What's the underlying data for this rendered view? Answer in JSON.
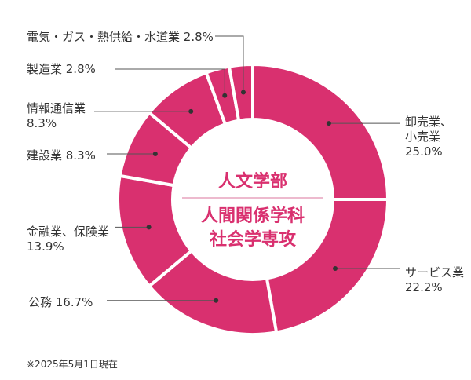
{
  "chart_data": {
    "type": "pie",
    "center_title": "人文学部",
    "center_subtitle_lines": [
      "人間関係学科",
      "社会学専攻"
    ],
    "slices": [
      {
        "label_lines": [
          "卸売業、",
          "小売業"
        ],
        "value_text": "25.0%",
        "value": 25.0
      },
      {
        "label_lines": [
          "サービス業"
        ],
        "value_text": "22.2%",
        "value": 22.2
      },
      {
        "label_lines": [
          "公務"
        ],
        "value_text": "16.7%",
        "value": 16.7
      },
      {
        "label_lines": [
          "金融業、保険業"
        ],
        "value_text": "13.9%",
        "value": 13.9
      },
      {
        "label_lines": [
          "建設業"
        ],
        "value_text": "8.3%",
        "value": 8.3
      },
      {
        "label_lines": [
          "情報通信業"
        ],
        "value_text": "8.3%",
        "value": 8.3
      },
      {
        "label_lines": [
          "製造業"
        ],
        "value_text": "2.8%",
        "value": 2.8
      },
      {
        "label_lines": [
          "電気・ガス・熱供給・水道業"
        ],
        "value_text": "2.8%",
        "value": 2.8
      }
    ],
    "note": "※2025年5月1日現在",
    "colors": {
      "slice": "#d9306f",
      "separator": "#ffffff",
      "center_text": "#d9306f",
      "divider": "#e7a3bd",
      "leader": "#555555"
    }
  }
}
